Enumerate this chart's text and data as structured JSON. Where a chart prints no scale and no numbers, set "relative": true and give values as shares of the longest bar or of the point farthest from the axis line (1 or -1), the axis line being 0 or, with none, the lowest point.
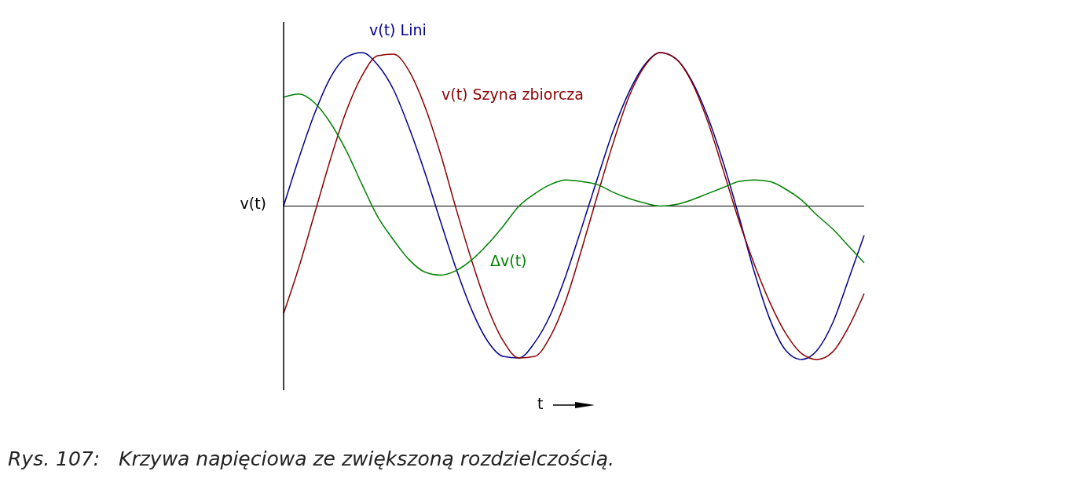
{
  "chart_data": {
    "type": "line",
    "relative": true,
    "xlabel": "t",
    "ylabel": "v(t)",
    "marker": "none",
    "categories": [
      null,
      null,
      null,
      null,
      null,
      null,
      null,
      null,
      null,
      null,
      null,
      null,
      null,
      null,
      null,
      null,
      null,
      null,
      null,
      null,
      null,
      null,
      null,
      null,
      null,
      null,
      null,
      null,
      null,
      null,
      null,
      null,
      null,
      null,
      null,
      null,
      null,
      null
    ],
    "series": [
      {
        "name": "v(t) Lini",
        "color": "#00008b",
        "values": [
          0,
          0.32,
          0.61,
          0.84,
          0.97,
          1.0,
          0.92,
          0.76,
          0.51,
          0.22,
          -0.1,
          -0.41,
          -0.68,
          -0.88,
          -0.98,
          -0.99,
          -0.89,
          -0.71,
          -0.45,
          -0.14,
          0.18,
          0.49,
          0.74,
          0.92,
          1.0,
          0.96,
          0.82,
          0.59,
          0.29,
          -0.06,
          -0.43,
          -0.74,
          -0.94,
          -1.0,
          -0.94,
          -0.76,
          -0.48,
          -0.19
        ]
      },
      {
        "name": "v(t) Szyna zbiorcza",
        "color": "#8b0000",
        "values": [
          -0.7,
          -0.39,
          -0.04,
          0.31,
          0.62,
          0.85,
          0.98,
          0.99,
          0.88,
          0.65,
          0.34,
          -0.02,
          -0.36,
          -0.66,
          -0.88,
          -0.99,
          -0.98,
          -0.85,
          -0.61,
          -0.28,
          0.07,
          0.41,
          0.71,
          0.91,
          1.0,
          0.96,
          0.81,
          0.56,
          0.24,
          -0.09,
          -0.38,
          -0.63,
          -0.83,
          -0.96,
          -1.0,
          -0.95,
          -0.79,
          -0.57
        ]
      },
      {
        "name": "Δv(t)",
        "color": "#008000",
        "values": [
          0.71,
          0.73,
          0.67,
          0.54,
          0.36,
          0.14,
          -0.07,
          -0.22,
          -0.35,
          -0.43,
          -0.45,
          -0.42,
          -0.35,
          -0.25,
          -0.13,
          0,
          0.08,
          0.14,
          0.17,
          0.16,
          0.14,
          0.09,
          0.05,
          0.02,
          0,
          0.01,
          0.04,
          0.08,
          0.12,
          0.16,
          0.17,
          0.16,
          0.11,
          0.04,
          -0.06,
          -0.15,
          -0.26,
          -0.37
        ]
      }
    ],
    "annotations": [
      "Rys. 107:   Krzywa napięciowa ze zwiększoną rozdzielczością."
    ]
  }
}
